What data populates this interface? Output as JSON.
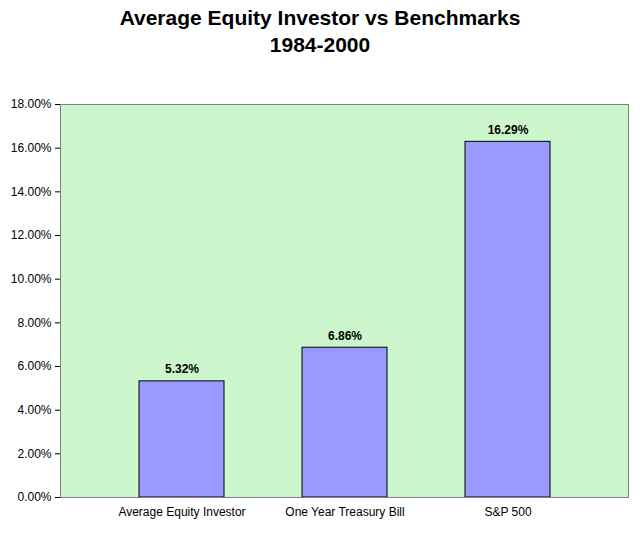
{
  "chart_data": {
    "type": "bar",
    "title": "Average Equity Investor vs Benchmarks",
    "subtitle": "1984-2000",
    "categories": [
      "Average Equity Investor",
      "One Year Treasury Bill",
      "S&P 500"
    ],
    "values": [
      5.32,
      6.86,
      16.29
    ],
    "value_labels": [
      "5.32%",
      "6.86%",
      "16.29%"
    ],
    "data_labels": true,
    "color": "#9999ff",
    "ylim": [
      0,
      18
    ],
    "yticks": [
      {
        "value": 0,
        "label": "0.00%"
      },
      {
        "value": 2,
        "label": "2.00%"
      },
      {
        "value": 4,
        "label": "4.00%"
      },
      {
        "value": 6,
        "label": "6.00%"
      },
      {
        "value": 8,
        "label": "8.00%"
      },
      {
        "value": 10,
        "label": "10.00%"
      },
      {
        "value": 12,
        "label": "12.00%"
      },
      {
        "value": 14,
        "label": "14.00%"
      },
      {
        "value": 16,
        "label": "16.00%"
      },
      {
        "value": 18,
        "label": "18.00%"
      }
    ],
    "grid": false
  }
}
